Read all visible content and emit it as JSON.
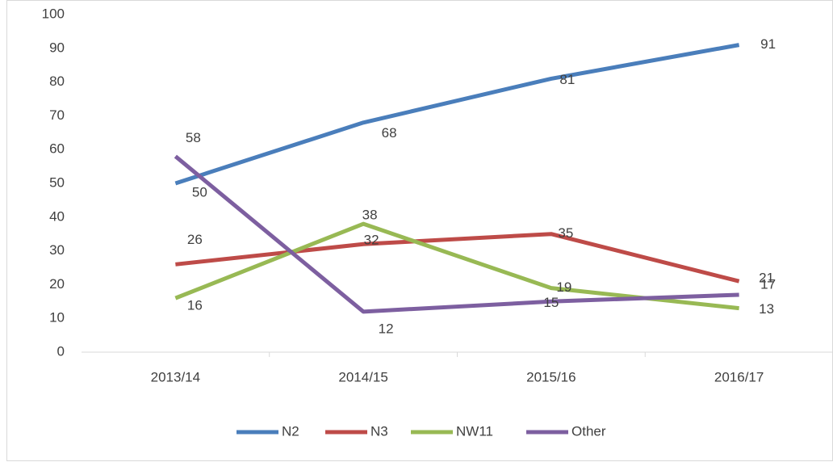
{
  "chart_data": {
    "type": "line",
    "categories": [
      "2013/14",
      "2014/15",
      "2015/16",
      "2016/17"
    ],
    "series": [
      {
        "name": "N2",
        "color": "#4a7ebb",
        "values": [
          50,
          68,
          81,
          91
        ]
      },
      {
        "name": "N3",
        "color": "#be4b48",
        "values": [
          26,
          32,
          35,
          21
        ]
      },
      {
        "name": "NW11",
        "color": "#98b954",
        "values": [
          16,
          38,
          19,
          13
        ]
      },
      {
        "name": "Other",
        "color": "#7d5fa0",
        "values": [
          58,
          12,
          15,
          17
        ]
      }
    ],
    "ylim": [
      0,
      100
    ],
    "yticks": [
      0,
      10,
      20,
      30,
      40,
      50,
      60,
      70,
      80,
      90,
      100
    ],
    "grid": false,
    "legend": "bottom"
  }
}
